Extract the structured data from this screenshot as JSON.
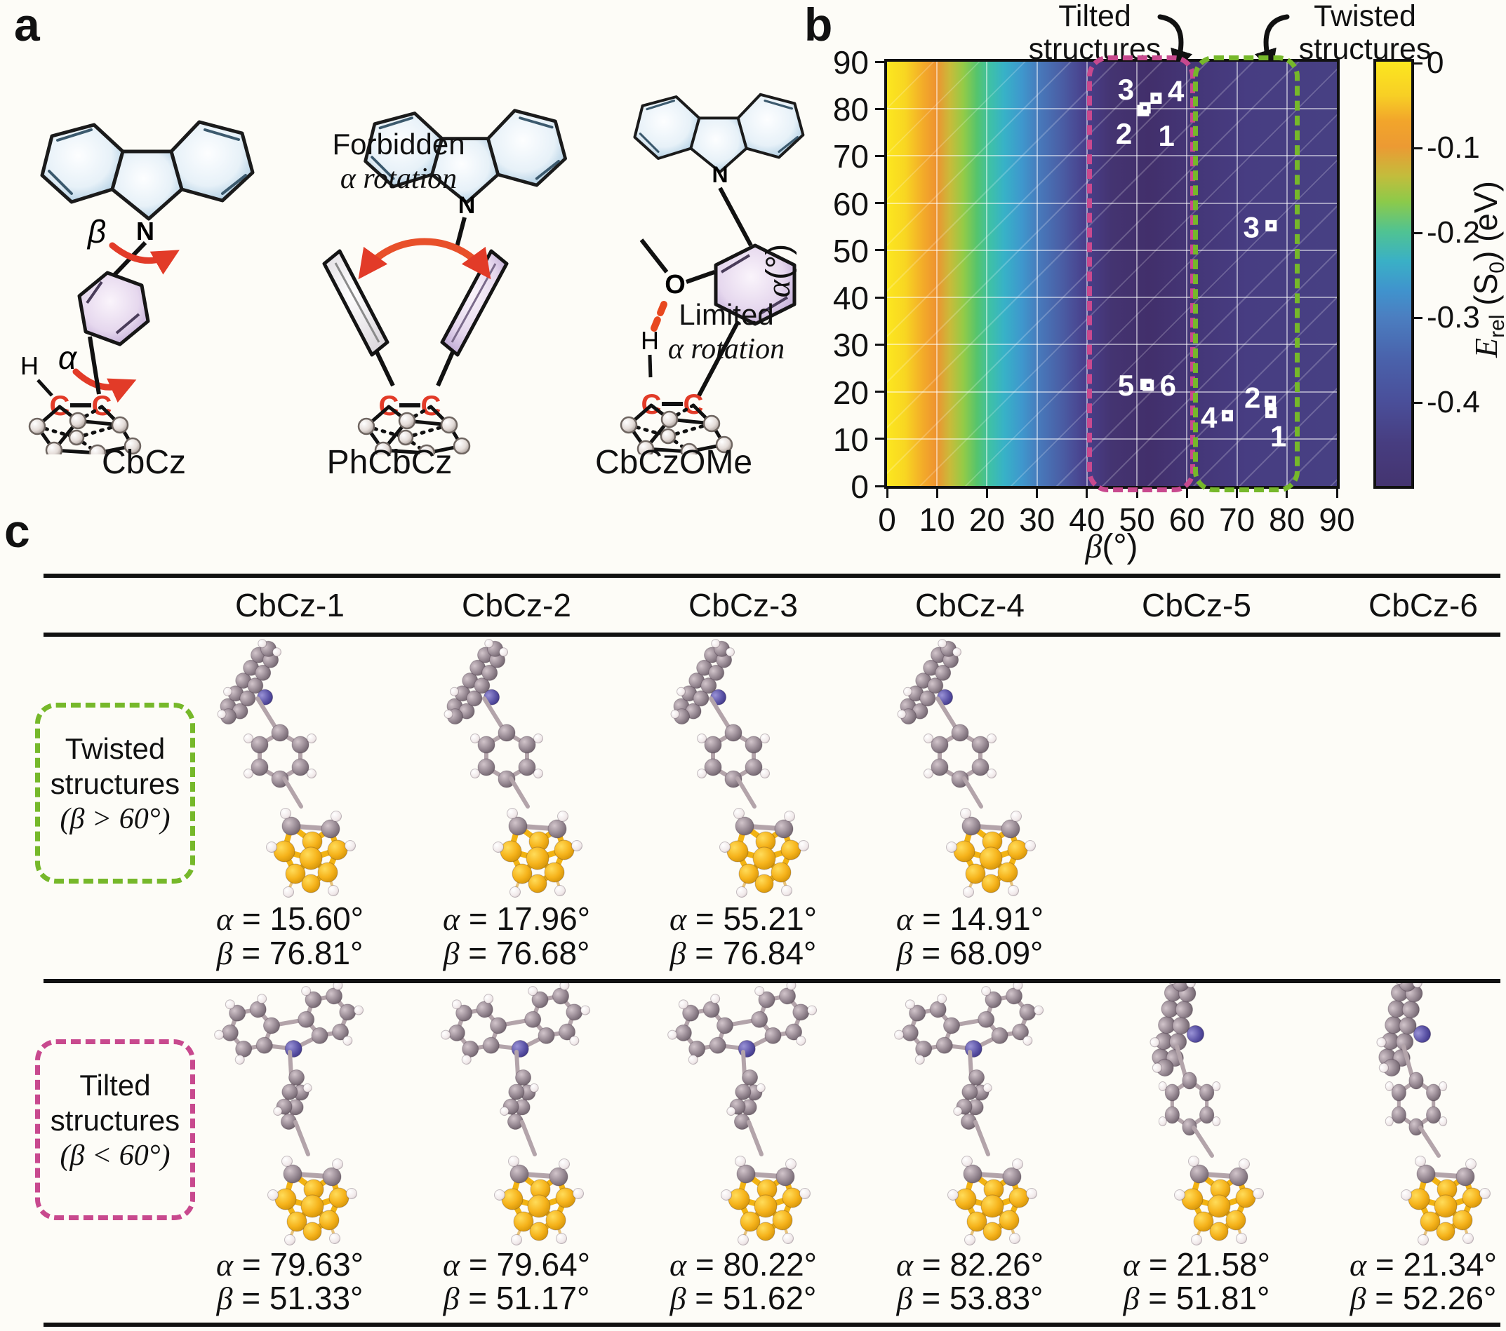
{
  "panel_a": {
    "label": "a",
    "molecules": [
      {
        "name": "CbCz",
        "atoms": {
          "h": "H",
          "c1": "C",
          "c2": "C",
          "n": "N"
        },
        "angle_alpha": "α",
        "angle_beta": "β"
      },
      {
        "name": "PhCbCz",
        "annotation_line1": "Forbidden",
        "annotation_line2": "α rotation",
        "atoms": {
          "c1": "C",
          "c2": "C",
          "n": "N"
        }
      },
      {
        "name": "CbCzOMe",
        "annotation_line1": "Limited",
        "annotation_line2": "α rotation",
        "atoms": {
          "h": "H",
          "o": "O",
          "c1": "C",
          "c2": "C",
          "n": "N"
        }
      }
    ]
  },
  "panel_b": {
    "label": "b",
    "callouts": [
      {
        "line1": "Tilted",
        "line2": "structures"
      },
      {
        "line1": "Twisted",
        "line2": "structures"
      }
    ],
    "xlabel_sym": "β",
    "xlabel_unit": "(°)",
    "ylabel_sym": "α",
    "ylabel_unit": "(°)",
    "colorbar_label": {
      "e": "E",
      "rel": "rel",
      "s": " (S",
      "zero": "0",
      "ev": ") (eV)"
    }
  },
  "chart_data": {
    "type": "heatmap",
    "xlabel": "β(°)",
    "ylabel": "α(°)",
    "xlim": [
      0,
      90
    ],
    "ylim": [
      0,
      90
    ],
    "xticks": [
      0,
      10,
      20,
      30,
      40,
      50,
      60,
      70,
      80,
      90
    ],
    "yticks": [
      0,
      10,
      20,
      30,
      40,
      50,
      60,
      70,
      80,
      90
    ],
    "grid": true,
    "colormap": [
      "#fce71f",
      "#ee9230",
      "#55c46d",
      "#37b2c7",
      "#4878ba",
      "#493f8b",
      "#443471"
    ],
    "colorbar": {
      "label": "E_rel (S0) (eV)",
      "tick_labels": [
        "0",
        "-0.1",
        "-0.2",
        "-0.3",
        "-0.4"
      ],
      "tick_values": [
        0,
        -0.1,
        -0.2,
        -0.3,
        -0.4
      ],
      "range": [
        0,
        -0.5
      ]
    },
    "value_profile": {
      "description": "E_rel(S0) depends mainly on β: 0 eV at β=0 decreasing to about -0.43 eV for β≳45°, nearly independent of α",
      "beta_samples": [
        0,
        5,
        10,
        15,
        20,
        25,
        30,
        35,
        45,
        60,
        90
      ],
      "e_rel_samples": [
        0,
        -0.05,
        -0.1,
        -0.16,
        -0.22,
        -0.27,
        -0.31,
        -0.35,
        -0.41,
        -0.43,
        -0.42
      ]
    },
    "regions": [
      {
        "name": "Tilted structures",
        "beta_range": [
          41,
          60.6
        ],
        "alpha_range": [
          0,
          90
        ],
        "color": "#c8498e"
      },
      {
        "name": "Twisted structures",
        "beta_range": [
          62.2,
          81.6
        ],
        "alpha_range": [
          0,
          90
        ],
        "color": "#76b82a"
      }
    ],
    "points": [
      {
        "id": "tilted-1",
        "beta": 51.33,
        "alpha": 79.63
      },
      {
        "id": "tilted-2",
        "beta": 51.17,
        "alpha": 79.64
      },
      {
        "id": "tilted-3",
        "beta": 51.62,
        "alpha": 80.22
      },
      {
        "id": "tilted-4",
        "beta": 53.83,
        "alpha": 82.26
      },
      {
        "id": "tilted-5",
        "beta": 51.81,
        "alpha": 21.58
      },
      {
        "id": "tilted-6",
        "beta": 52.26,
        "alpha": 21.34
      },
      {
        "id": "twisted-1",
        "beta": 76.81,
        "alpha": 15.6
      },
      {
        "id": "twisted-2",
        "beta": 76.68,
        "alpha": 17.96
      },
      {
        "id": "twisted-3",
        "beta": 76.84,
        "alpha": 55.21
      },
      {
        "id": "twisted-4",
        "beta": 68.09,
        "alpha": 14.91
      }
    ],
    "point_labels": [
      {
        "text": "3",
        "beta": 47.8,
        "alpha": 84.2
      },
      {
        "text": "2",
        "beta": 47.4,
        "alpha": 74.8
      },
      {
        "text": "1",
        "beta": 55.9,
        "alpha": 74.4
      },
      {
        "text": "4",
        "beta": 57.8,
        "alpha": 83.8
      },
      {
        "text": "5",
        "beta": 47.8,
        "alpha": 21.4
      },
      {
        "text": "6",
        "beta": 56.2,
        "alpha": 21.4
      },
      {
        "text": "3",
        "beta": 72.9,
        "alpha": 55.0
      },
      {
        "text": "2",
        "beta": 73.1,
        "alpha": 18.8
      },
      {
        "text": "1",
        "beta": 78.3,
        "alpha": 10.6
      },
      {
        "text": "4",
        "beta": 64.4,
        "alpha": 14.6
      }
    ],
    "marker_color": "#ffffff"
  },
  "panel_c": {
    "label": "c",
    "columns": [
      "CbCz-1",
      "CbCz-2",
      "CbCz-3",
      "CbCz-4",
      "CbCz-5",
      "CbCz-6"
    ],
    "format": {
      "alpha_sym": "α",
      "beta_sym": "β",
      "equals": " = ",
      "degree": "°"
    },
    "rows": [
      {
        "group_line1": "Twisted",
        "group_line2": "structures",
        "group_line3": "(β > 60°)",
        "box_color": "#76b82a",
        "variant": "twist",
        "entries": [
          {
            "alpha": "15.60",
            "beta": "76.81"
          },
          {
            "alpha": "17.96",
            "beta": "76.68"
          },
          {
            "alpha": "55.21",
            "beta": "76.84"
          },
          {
            "alpha": "14.91",
            "beta": "68.09"
          },
          null,
          null
        ]
      },
      {
        "group_line1": "Tilted",
        "group_line2": "structures",
        "group_line3": "(β < 60°)",
        "box_color": "#c8498e",
        "variant": "tilt",
        "entries": [
          {
            "alpha": "79.63",
            "beta": "51.33"
          },
          {
            "alpha": "79.64",
            "beta": "51.17"
          },
          {
            "alpha": "80.22",
            "beta": "51.62"
          },
          {
            "alpha": "82.26",
            "beta": "53.83"
          },
          {
            "alpha": "21.58",
            "beta": "51.81"
          },
          {
            "alpha": "21.34",
            "beta": "52.26"
          }
        ]
      }
    ]
  }
}
